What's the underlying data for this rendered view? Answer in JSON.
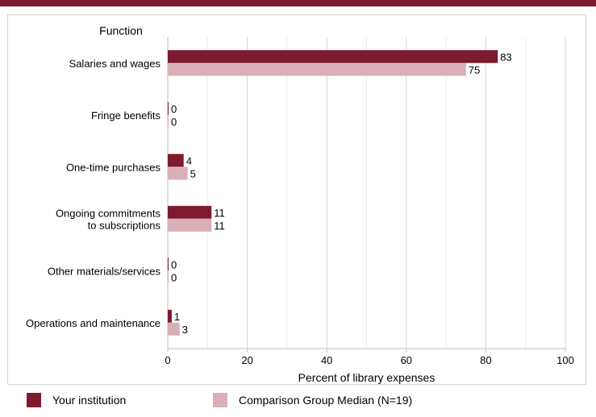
{
  "chart_data": {
    "type": "bar",
    "orientation": "horizontal",
    "category_axis_title": "Function",
    "categories": [
      [
        "Salaries and wages"
      ],
      [
        "Fringe benefits"
      ],
      [
        "One-time purchases"
      ],
      [
        "Ongoing commitments",
        "to subscriptions"
      ],
      [
        "Other materials/services"
      ],
      [
        "Operations and maintenance"
      ]
    ],
    "series": [
      {
        "name": "Your institution",
        "values": [
          83,
          0,
          4,
          11,
          0,
          1
        ],
        "color": "#7e1a2e"
      },
      {
        "name": "Comparison Group Median (N=19)",
        "values": [
          75,
          0,
          5,
          11,
          0,
          3
        ],
        "color": "#d9b0b7"
      }
    ],
    "xlabel": "Percent of library expenses",
    "xlim": [
      0,
      100
    ],
    "xticks": [
      0,
      20,
      40,
      60,
      80,
      100
    ],
    "grid": true,
    "legend_position": "bottom"
  },
  "legend": {
    "item1": "Your institution",
    "item2": "Comparison Group Median (N=19)"
  }
}
